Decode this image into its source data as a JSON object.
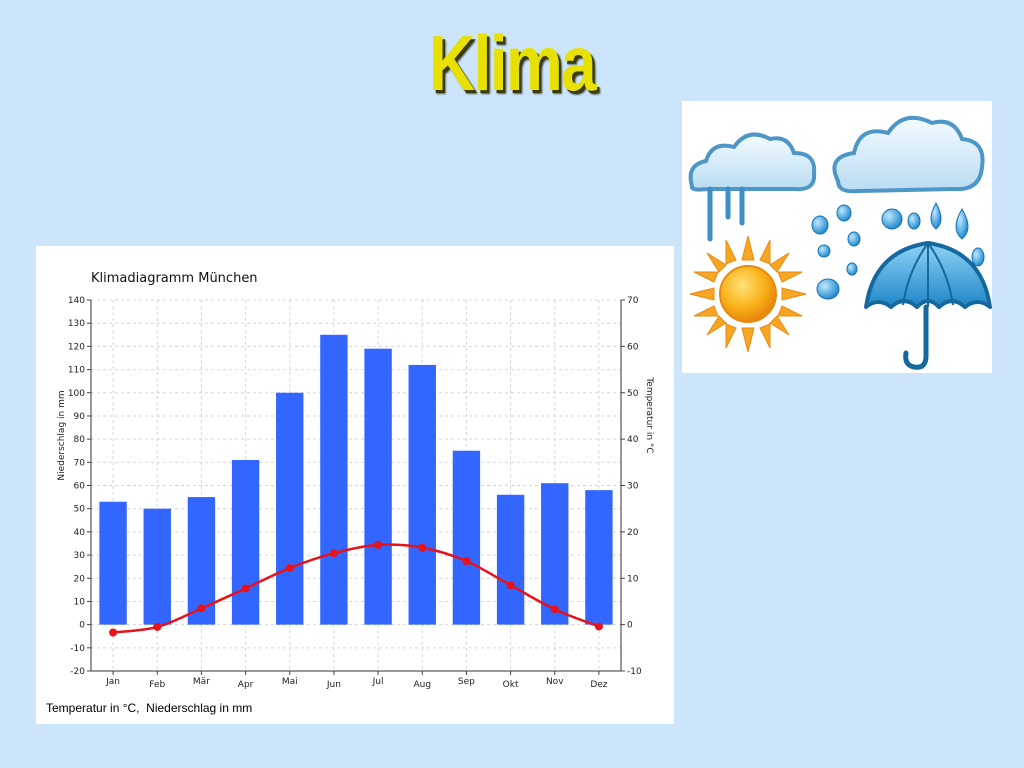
{
  "slide": {
    "title": "Klima"
  },
  "chart_data": {
    "type": "bar",
    "title": "Klimadiagramm München",
    "categories": [
      "Jan",
      "Feb",
      "Mär",
      "Apr",
      "Mai",
      "Jun",
      "Jul",
      "Aug",
      "Sep",
      "Okt",
      "Nov",
      "Dez"
    ],
    "series": [
      {
        "name": "Niederschlag in mm",
        "type": "bar",
        "axis": "left",
        "color": "#3366ff",
        "values": [
          53,
          50,
          55,
          71,
          100,
          125,
          119,
          112,
          75,
          56,
          61,
          58
        ]
      },
      {
        "name": "Temperatur in °C",
        "type": "line",
        "axis": "right",
        "color": "#e8121a",
        "values": [
          -1.7,
          -0.5,
          3.5,
          7.8,
          12.2,
          15.4,
          17.2,
          16.6,
          13.7,
          8.5,
          3.3,
          -0.4
        ]
      }
    ],
    "ylabel": "Niederschlag in mm",
    "ylim": [
      -20,
      140
    ],
    "yticks": [
      -20,
      -10,
      0,
      10,
      20,
      30,
      40,
      50,
      60,
      70,
      80,
      90,
      100,
      110,
      120,
      130,
      140
    ],
    "y2label": "Temperatur in °C",
    "y2lim": [
      -10,
      70
    ],
    "y2ticks": [
      -10,
      0,
      10,
      20,
      30,
      40,
      50,
      60,
      70
    ],
    "grid": true,
    "caption": "Temperatur in °C,  Niederschlag in mm"
  },
  "illustration": {
    "icons": [
      "rain-cloud-icon",
      "cloud-icon",
      "sun-icon",
      "rain-drops-icon",
      "umbrella-icon"
    ]
  }
}
